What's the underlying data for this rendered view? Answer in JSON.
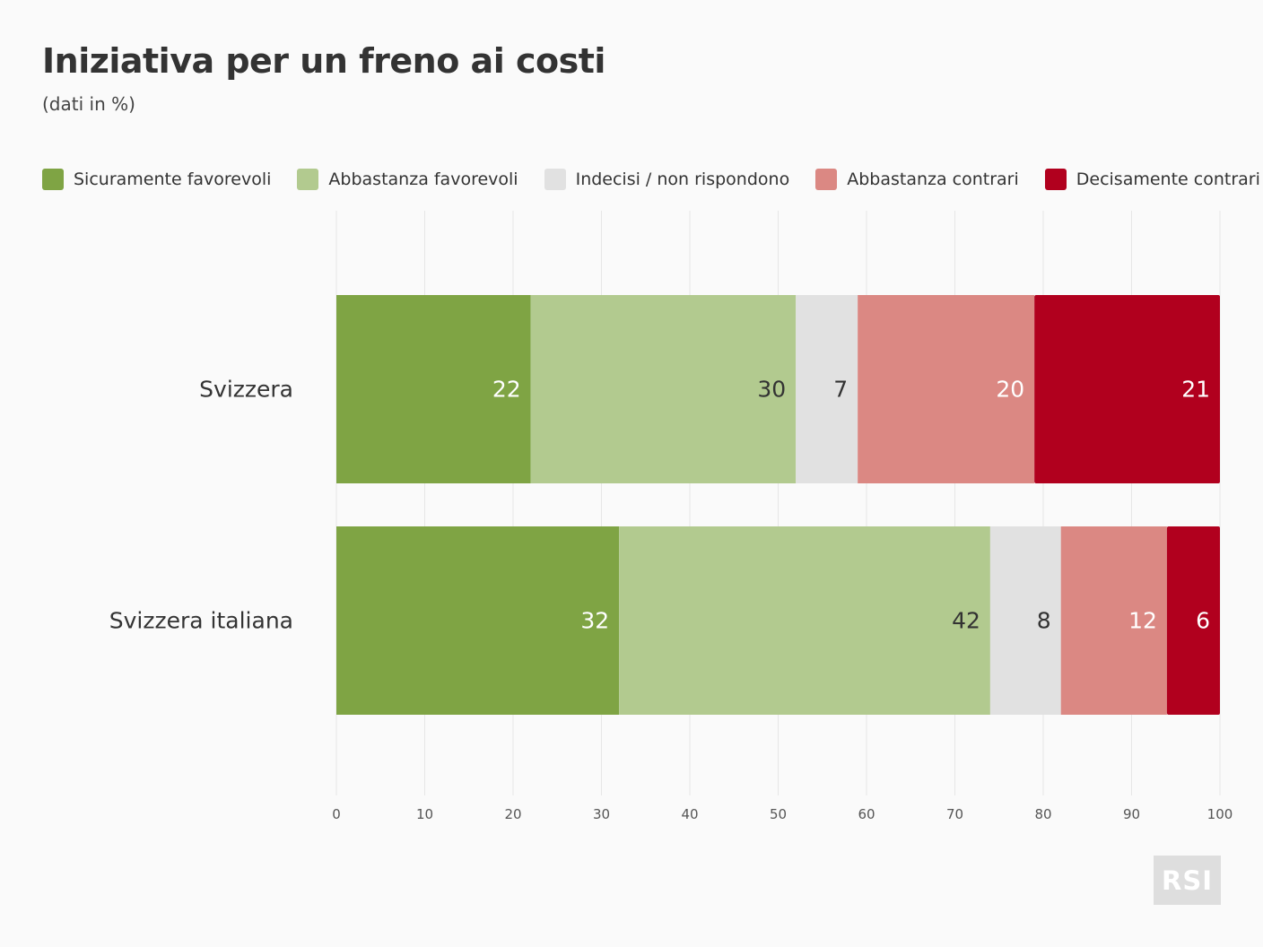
{
  "chart_data": {
    "type": "bar",
    "orientation": "horizontal",
    "stacked": true,
    "title": "Iniziativa per un freno ai costi",
    "subtitle": "(dati in %)",
    "categories": [
      "Svizzera",
      "Svizzera italiana"
    ],
    "series": [
      {
        "name": "Sicuramente favorevoli",
        "color": "#7fa444",
        "label_color": "#ffffff",
        "values": [
          22,
          32
        ]
      },
      {
        "name": "Abbastanza favorevoli",
        "color": "#b2ca8f",
        "label_color": "#333333",
        "values": [
          30,
          42
        ]
      },
      {
        "name": "Indecisi / non rispondono",
        "color": "#e1e1e1",
        "label_color": "#333333",
        "values": [
          7,
          8
        ]
      },
      {
        "name": "Abbastanza contrari",
        "color": "#db8883",
        "label_color": "#ffffff",
        "values": [
          20,
          12
        ]
      },
      {
        "name": "Decisamente contrari",
        "color": "#b1001e",
        "label_color": "#ffffff",
        "values": [
          21,
          6
        ]
      }
    ],
    "xlim": [
      0,
      100
    ],
    "x_ticks": [
      "0",
      "10",
      "20",
      "30",
      "40",
      "50",
      "60",
      "70",
      "80",
      "90",
      "100"
    ],
    "grid": true,
    "legend_position": "top"
  },
  "logo": {
    "text": "RSI"
  }
}
